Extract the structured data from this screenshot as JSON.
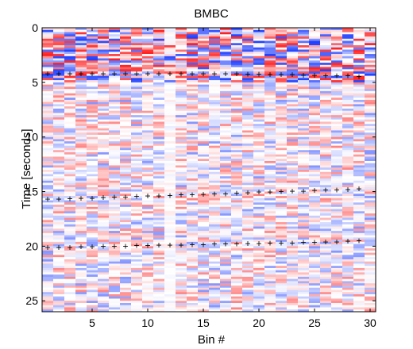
{
  "chart_data": {
    "type": "heatmap",
    "title": "BMBC",
    "xlabel": "Bin #",
    "ylabel": "Time [seconds]",
    "xlim": [
      1,
      30
    ],
    "ylim": [
      26,
      0
    ],
    "x_ticks": [
      5,
      10,
      15,
      20,
      25,
      30
    ],
    "y_ticks": [
      0,
      5,
      10,
      15,
      20,
      25
    ],
    "colormap": {
      "negative": "#1f3fff",
      "zero": "#ffffff",
      "positive": "#ff1f1f"
    },
    "n_bins": 30,
    "n_time_rows": 130,
    "marker_symbol": "+",
    "marker_series": [
      {
        "x": [
          1,
          2,
          3,
          4,
          5,
          6,
          7,
          8,
          9,
          10,
          11,
          12,
          13,
          14,
          15,
          16,
          17,
          18,
          19,
          20,
          21,
          22,
          23,
          24,
          25,
          26,
          27,
          28,
          29
        ],
        "y": [
          4.2,
          4.2,
          4.2,
          4.2,
          4.2,
          4.2,
          4.2,
          4.2,
          4.2,
          4.2,
          4.2,
          4.2,
          4.2,
          4.2,
          4.2,
          4.2,
          4.2,
          4.2,
          4.25,
          4.25,
          4.3,
          4.3,
          4.3,
          4.35,
          4.35,
          4.4,
          4.4,
          4.4,
          4.45
        ]
      },
      {
        "x": [
          1,
          2,
          3,
          4,
          5,
          6,
          7,
          8,
          9,
          10,
          11,
          12,
          13,
          14,
          15,
          16,
          17,
          18,
          19,
          20,
          21,
          22,
          23,
          24,
          25,
          26,
          27,
          28,
          29
        ],
        "y": [
          15.7,
          15.7,
          15.65,
          15.6,
          15.6,
          15.55,
          15.5,
          15.5,
          15.45,
          15.4,
          15.4,
          15.35,
          15.3,
          15.3,
          15.25,
          15.2,
          15.2,
          15.15,
          15.1,
          15.05,
          15.05,
          15.0,
          14.95,
          14.95,
          14.9,
          14.85,
          14.85,
          14.8,
          14.75
        ]
      },
      {
        "x": [
          1,
          2,
          3,
          4,
          5,
          6,
          7,
          8,
          9,
          10,
          11,
          12,
          13,
          14,
          15,
          16,
          17,
          18,
          19,
          20,
          21,
          22,
          23,
          24,
          25,
          26,
          27,
          28,
          29
        ],
        "y": [
          20.1,
          20.1,
          20.1,
          20.05,
          20.05,
          20.0,
          20.0,
          20.0,
          19.95,
          19.95,
          19.9,
          19.9,
          19.9,
          19.85,
          19.85,
          19.8,
          19.8,
          19.8,
          19.75,
          19.75,
          19.7,
          19.7,
          19.7,
          19.65,
          19.65,
          19.6,
          19.6,
          19.55,
          19.5
        ]
      }
    ]
  }
}
